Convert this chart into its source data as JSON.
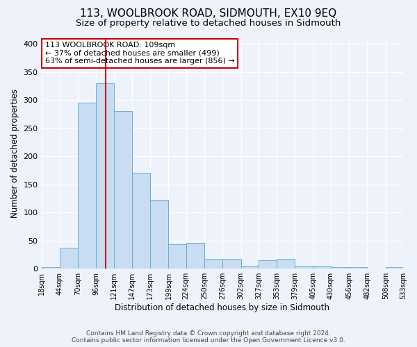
{
  "title": "113, WOOLBROOK ROAD, SIDMOUTH, EX10 9EQ",
  "subtitle": "Size of property relative to detached houses in Sidmouth",
  "xlabel": "Distribution of detached houses by size in Sidmouth",
  "ylabel": "Number of detached properties",
  "bin_edges": [
    18,
    44,
    70,
    96,
    121,
    147,
    173,
    199,
    224,
    250,
    276,
    302,
    327,
    353,
    379,
    405,
    430,
    456,
    482,
    508,
    533
  ],
  "bar_heights": [
    3,
    37,
    295,
    330,
    280,
    170,
    122,
    44,
    46,
    17,
    17,
    5,
    15,
    17,
    5,
    5,
    3,
    3,
    0,
    3
  ],
  "bar_color": "#c8ddf2",
  "bar_edge_color": "#6aaed6",
  "vline_x": 109,
  "vline_color": "#cc0000",
  "annotation_text": "113 WOOLBROOK ROAD: 109sqm\n← 37% of detached houses are smaller (499)\n63% of semi-detached houses are larger (856) →",
  "annotation_box_color": "#ffffff",
  "annotation_box_edge_color": "#cc0000",
  "ylim": [
    0,
    410
  ],
  "tick_labels": [
    "18sqm",
    "44sqm",
    "70sqm",
    "96sqm",
    "121sqm",
    "147sqm",
    "173sqm",
    "199sqm",
    "224sqm",
    "250sqm",
    "276sqm",
    "302sqm",
    "327sqm",
    "353sqm",
    "379sqm",
    "405sqm",
    "430sqm",
    "456sqm",
    "482sqm",
    "508sqm",
    "533sqm"
  ],
  "footer_line1": "Contains HM Land Registry data © Crown copyright and database right 2024.",
  "footer_line2": "Contains public sector information licensed under the Open Government Licence v3.0.",
  "background_color": "#eef2fa",
  "grid_color": "#ffffff",
  "title_fontsize": 11,
  "subtitle_fontsize": 9.5,
  "axis_label_fontsize": 8.5,
  "tick_fontsize": 7,
  "footer_fontsize": 6.5,
  "annotation_fontsize": 8
}
